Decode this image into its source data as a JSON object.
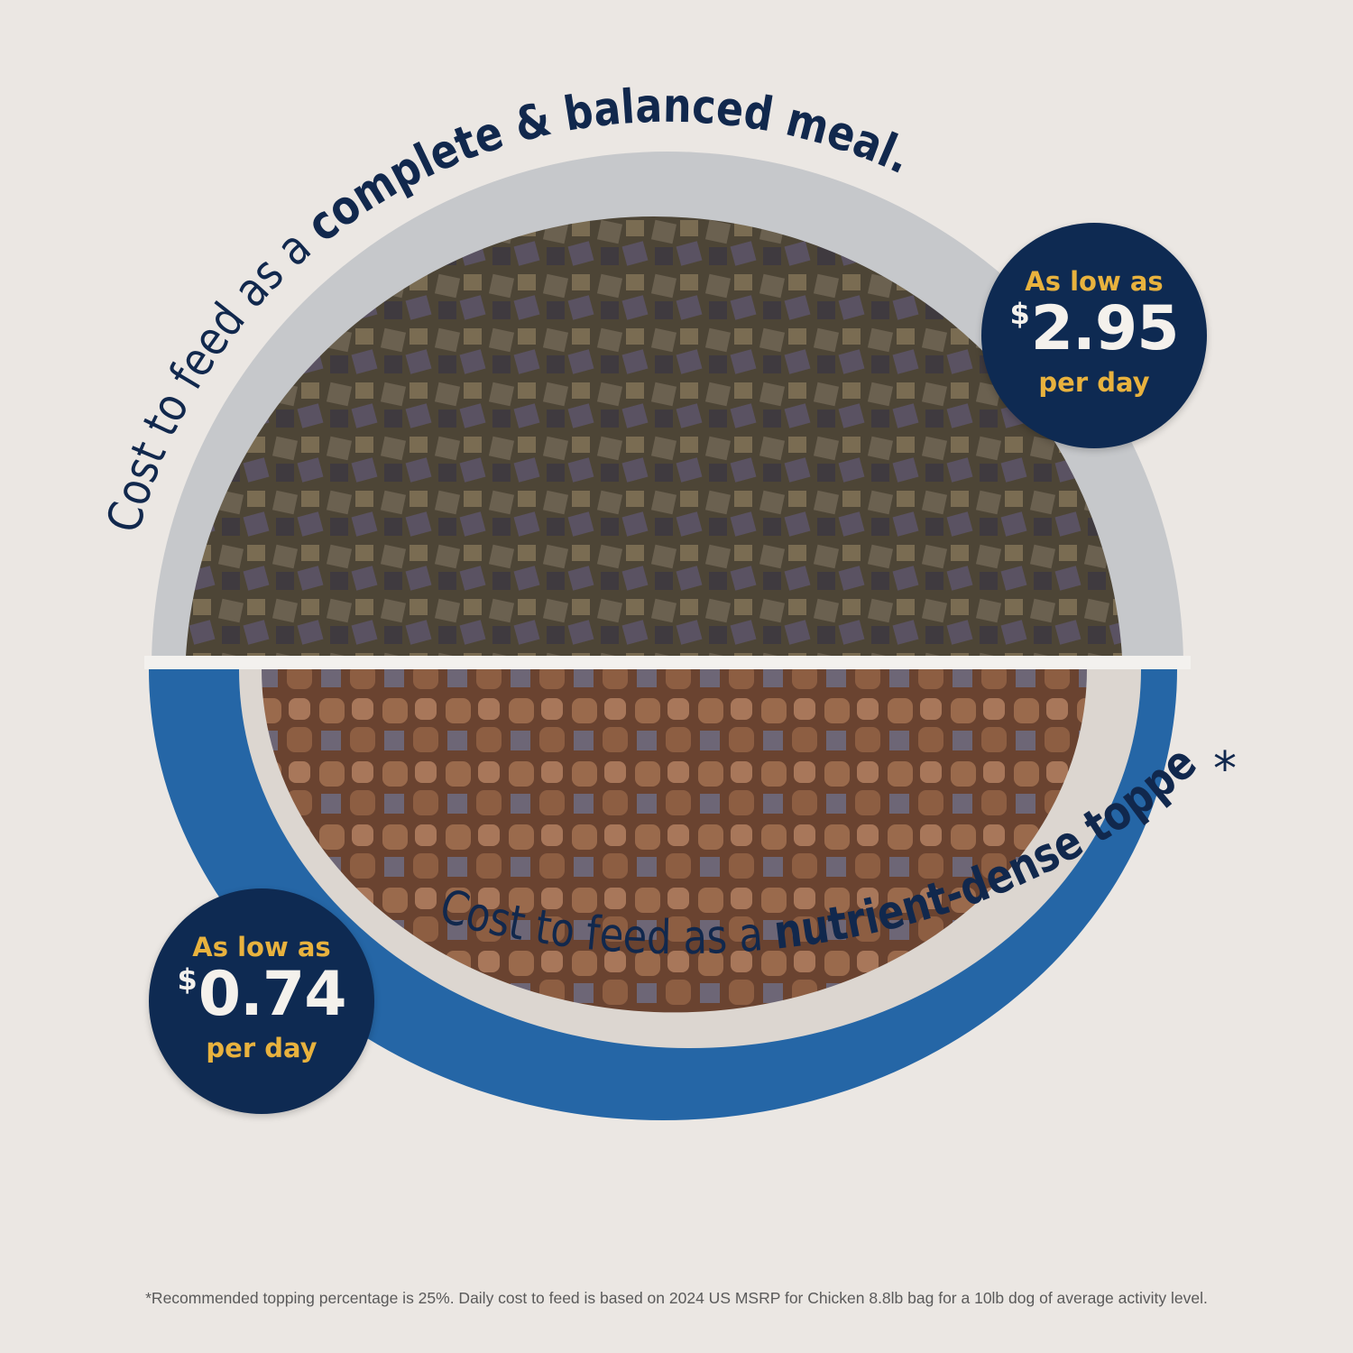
{
  "top_caption": {
    "regular": "Cost to feed as a ",
    "bold": "complete & balanced meal."
  },
  "bottom_caption": {
    "regular": "Cost to feed as a ",
    "bold": "nutrient-dense topper.",
    "asterisk": "*"
  },
  "badges": [
    {
      "line1": "As low as",
      "currency": "$",
      "amount": "2.95",
      "line3": "per day"
    },
    {
      "line1": "As low as",
      "currency": "$",
      "amount": "0.74",
      "line3": "per day"
    }
  ],
  "footnote": "*Recommended topping percentage is 25%. Daily cost to feed is based on 2024 US MSRP for Chicken 8.8lb bag for a 10lb dog of average activity level.",
  "colors": {
    "background": "#ebe7e3",
    "navy": "#0e2a52",
    "gold": "#e8b23e",
    "bowl_blue": "#2566a6",
    "bowl_grey": "#c9cacc"
  }
}
